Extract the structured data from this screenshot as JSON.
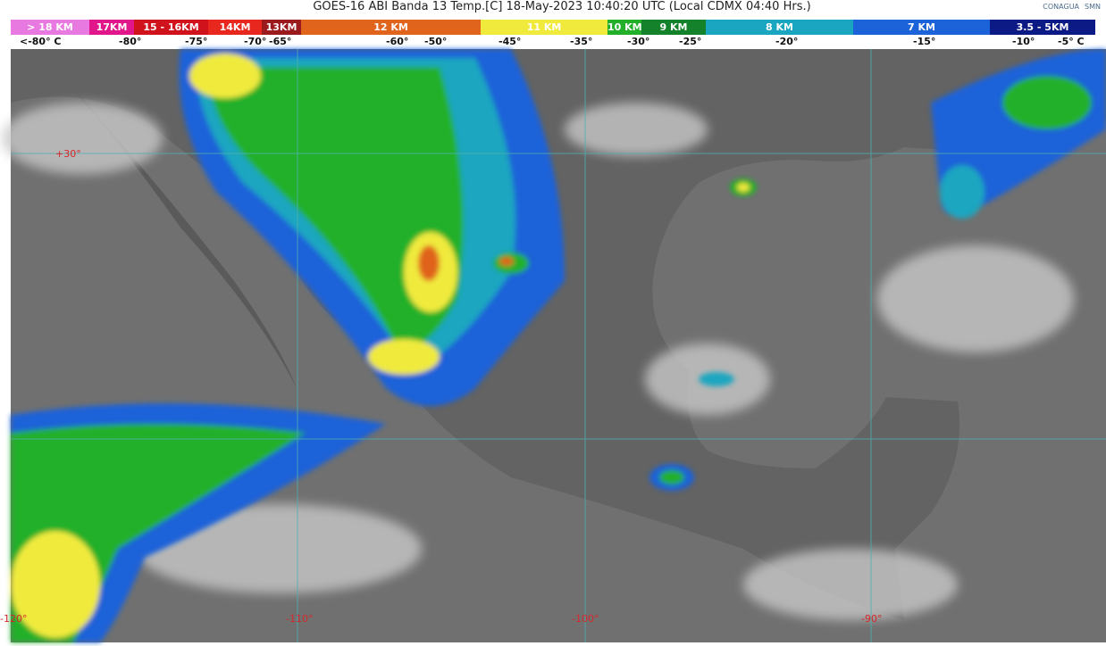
{
  "title": "GOES-16 ABI Banda 13 Temp.[C] 18-May-2023 10:40:20 UTC (Local CDMX  04:40 Hrs.)",
  "logos": [
    "CONAGUA",
    "SMN"
  ],
  "legend": [
    {
      "label": "> 18 KM",
      "color": "#e879e0"
    },
    {
      "label": "17KM",
      "color": "#e0168a"
    },
    {
      "label": "15 - 16KM",
      "color": "#d0121c"
    },
    {
      "label": "14KM",
      "color": "#e8281e"
    },
    {
      "label": "13KM",
      "color": "#9a1a1e"
    },
    {
      "label": "12 KM",
      "color": "#e0641c"
    },
    {
      "label": "11 KM",
      "color": "#f0ea3c"
    },
    {
      "label": "10 KM -",
      "color": "#22b02a"
    },
    {
      "label": "9 KM",
      "color": "#14822a"
    },
    {
      "label": "8 KM",
      "color": "#1aa6c0"
    },
    {
      "label": "7 KM",
      "color": "#1c62d8"
    },
    {
      "label": "3.5 - 5KM",
      "color": "#0c1a86"
    }
  ],
  "temps": [
    "<-80° C",
    "-80°",
    "-75°",
    "-70°",
    "-65°",
    "-60°",
    "-50°",
    "-45°",
    "-35°",
    "-30°",
    "-25°",
    "-20°",
    "-15°",
    "-10°",
    "-5° C"
  ],
  "map": {
    "lat_labels": [
      "+30°"
    ],
    "lon_labels": [
      "-120°",
      "-110°",
      "-100°",
      "-90°"
    ]
  }
}
